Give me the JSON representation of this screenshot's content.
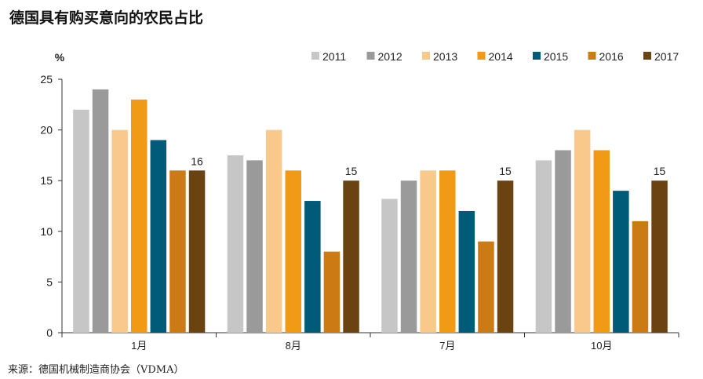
{
  "chart_data": {
    "type": "bar",
    "title": "德国具有购买意向的农民占比",
    "ylabel": "%",
    "xlabel": "",
    "ylim": [
      0,
      25
    ],
    "yticks": [
      0,
      5,
      10,
      15,
      20,
      25
    ],
    "grid": false,
    "legend_position": "top-right",
    "categories": [
      "1月",
      "8月",
      "7月",
      "10月"
    ],
    "series": [
      {
        "name": "2011",
        "color": "#c6c6c6",
        "values": [
          22,
          17.5,
          13.2,
          17
        ]
      },
      {
        "name": "2012",
        "color": "#9a9a9a",
        "values": [
          24,
          17,
          15,
          18
        ]
      },
      {
        "name": "2013",
        "color": "#f8c98a",
        "values": [
          20,
          20,
          16,
          20
        ]
      },
      {
        "name": "2014",
        "color": "#f09a16",
        "values": [
          23,
          16,
          16,
          18
        ]
      },
      {
        "name": "2015",
        "color": "#005b78",
        "values": [
          19,
          13,
          12,
          14
        ]
      },
      {
        "name": "2016",
        "color": "#cc7a13",
        "values": [
          16,
          8,
          9,
          11
        ]
      },
      {
        "name": "2017",
        "color": "#6b4310",
        "values": [
          16,
          15,
          15,
          15
        ]
      }
    ],
    "data_labels": [
      {
        "series": "2017",
        "category_index": 0,
        "text": "16"
      },
      {
        "series": "2017",
        "category_index": 1,
        "text": "15"
      },
      {
        "series": "2017",
        "category_index": 2,
        "text": "15"
      },
      {
        "series": "2017",
        "category_index": 3,
        "text": "15"
      }
    ],
    "source": "来源：德国机械制造商协会（VDMA）"
  }
}
